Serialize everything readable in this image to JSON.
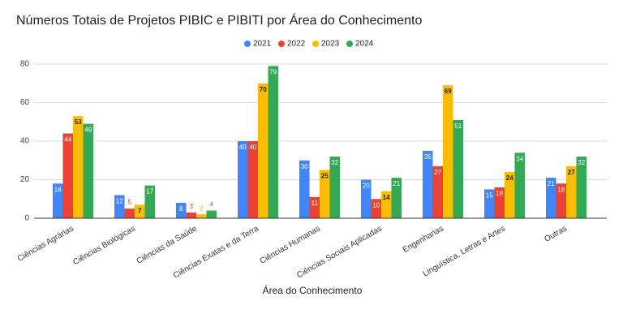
{
  "chart_data": {
    "type": "bar",
    "title": "Números Totais de Projetos PIBIC e PIBITI por Área do Conhecimento",
    "xlabel": "Área do Conhecimento",
    "categories": [
      "Ciências Agrárias",
      "Ciências Biológicas",
      "Ciências da Saúde",
      "Ciências Exatas e da Terra",
      "Ciências Humanas",
      "Ciências Sociais Aplicadas",
      "Engenharias",
      "Linguística, Letras e Artes",
      "Outras"
    ],
    "series": [
      {
        "name": "2021",
        "color": "#4285f4",
        "values": [
          18,
          12,
          8,
          40,
          30,
          20,
          35,
          15,
          21
        ]
      },
      {
        "name": "2022",
        "color": "#ea4335",
        "values": [
          44,
          5,
          3,
          40,
          11,
          10,
          27,
          16,
          18
        ]
      },
      {
        "name": "2023",
        "color": "#fbbc04",
        "values": [
          53,
          7,
          2,
          70,
          25,
          14,
          69,
          24,
          27
        ]
      },
      {
        "name": "2024",
        "color": "#34a853",
        "values": [
          49,
          17,
          4,
          79,
          32,
          21,
          51,
          34,
          32
        ]
      }
    ],
    "ylim": [
      0,
      80
    ],
    "yticks": [
      0,
      20,
      40,
      60,
      80
    ],
    "grid": true,
    "legend": "top"
  }
}
